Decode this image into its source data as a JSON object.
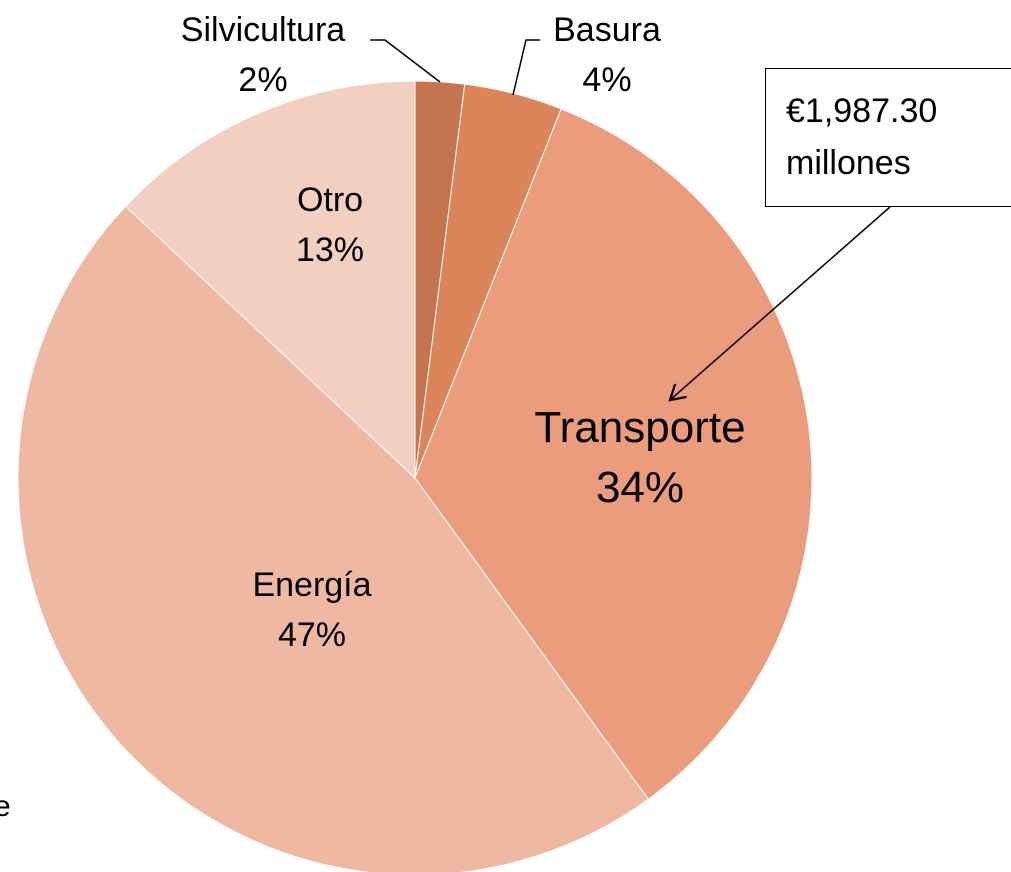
{
  "chart_data": {
    "type": "pie",
    "categories": [
      "Silvicultura",
      "Basura",
      "Transporte",
      "Energía",
      "Otro"
    ],
    "values": [
      2,
      4,
      34,
      47,
      13
    ],
    "value_labels": [
      "2%",
      "4%",
      "34%",
      "47%",
      "13%"
    ],
    "colors": [
      "#c4744e",
      "#dc845a",
      "#ea9c7c",
      "#efb8a3",
      "#f3cfc1"
    ],
    "annotation": "€1,987.30 millones",
    "fragment": "e"
  }
}
